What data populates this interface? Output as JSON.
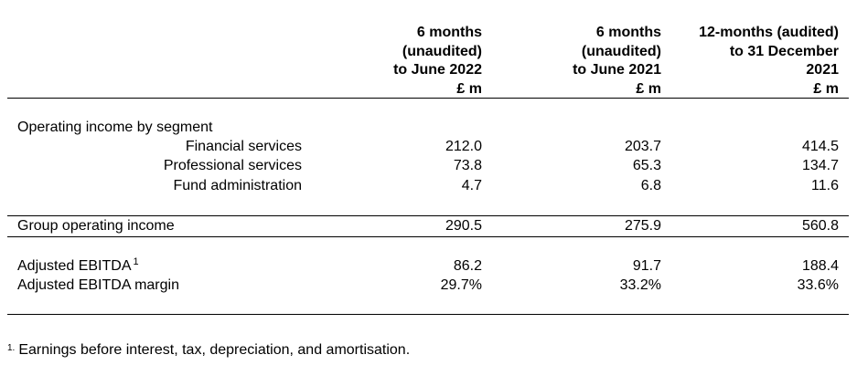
{
  "headers": {
    "col1": [
      "6 months",
      "(unaudited)",
      "to June 2022",
      "£ m"
    ],
    "col2": [
      "6 months",
      "(unaudited)",
      "to June 2021",
      "£ m"
    ],
    "col3": [
      "12-months (audited)",
      "to 31 December",
      "2021",
      "£ m"
    ]
  },
  "segment_heading": "Operating income by segment",
  "segments": [
    {
      "label": "Financial services",
      "v1": "212.0",
      "v2": "203.7",
      "v3": "414.5"
    },
    {
      "label": "Professional services",
      "v1": "73.8",
      "v2": "65.3",
      "v3": "134.7"
    },
    {
      "label": "Fund administration",
      "v1": "4.7",
      "v2": "6.8",
      "v3": "11.6"
    }
  ],
  "group_total": {
    "label": "Group operating income",
    "v1": "290.5",
    "v2": "275.9",
    "v3": "560.8"
  },
  "ebitda": {
    "label": "Adjusted EBITDA",
    "note": "1",
    "v1": "86.2",
    "v2": "91.7",
    "v3": "188.4"
  },
  "ebitda_margin": {
    "label": "Adjusted EBITDA margin",
    "v1": "29.7%",
    "v2": "33.2%",
    "v3": "33.6%"
  },
  "footnote": {
    "mark": "1.",
    "text": "Earnings before interest, tax, depreciation, and amortisation."
  }
}
